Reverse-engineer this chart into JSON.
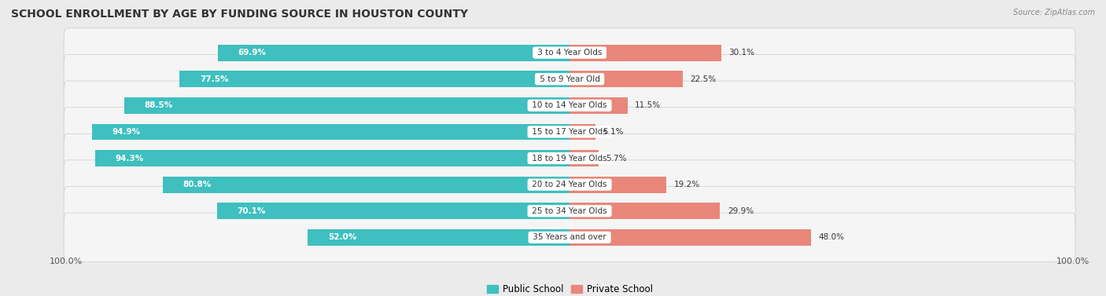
{
  "title": "SCHOOL ENROLLMENT BY AGE BY FUNDING SOURCE IN HOUSTON COUNTY",
  "source": "Source: ZipAtlas.com",
  "categories": [
    "3 to 4 Year Olds",
    "5 to 9 Year Old",
    "10 to 14 Year Olds",
    "15 to 17 Year Olds",
    "18 to 19 Year Olds",
    "20 to 24 Year Olds",
    "25 to 34 Year Olds",
    "35 Years and over"
  ],
  "public": [
    69.9,
    77.5,
    88.5,
    94.9,
    94.3,
    80.8,
    70.1,
    52.0
  ],
  "private": [
    30.1,
    22.5,
    11.5,
    5.1,
    5.7,
    19.2,
    29.9,
    48.0
  ],
  "public_color": "#3FBFBF",
  "private_color": "#E8877A",
  "background_color": "#EBEBEB",
  "row_bg_color": "#F5F5F5",
  "title_fontsize": 10,
  "label_fontsize": 7.5,
  "value_fontsize": 7.5,
  "bar_height": 0.62,
  "legend_public": "Public School",
  "legend_private": "Private School",
  "tick_label_fontsize": 8
}
